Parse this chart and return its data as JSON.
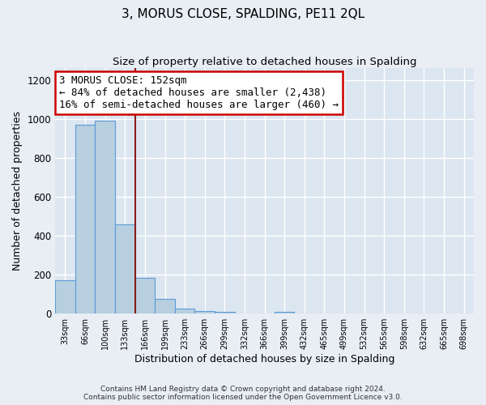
{
  "title": "3, MORUS CLOSE, SPALDING, PE11 2QL",
  "subtitle": "Size of property relative to detached houses in Spalding",
  "xlabel": "Distribution of detached houses by size in Spalding",
  "ylabel": "Number of detached properties",
  "footer_line1": "Contains HM Land Registry data © Crown copyright and database right 2024.",
  "footer_line2": "Contains public sector information licensed under the Open Government Licence v3.0.",
  "bar_labels": [
    "33sqm",
    "66sqm",
    "100sqm",
    "133sqm",
    "166sqm",
    "199sqm",
    "233sqm",
    "266sqm",
    "299sqm",
    "332sqm",
    "366sqm",
    "399sqm",
    "432sqm",
    "465sqm",
    "499sqm",
    "532sqm",
    "565sqm",
    "598sqm",
    "632sqm",
    "665sqm",
    "698sqm"
  ],
  "bar_values": [
    170,
    970,
    990,
    460,
    185,
    75,
    25,
    15,
    10,
    0,
    0,
    8,
    0,
    0,
    0,
    0,
    0,
    0,
    0,
    0,
    0
  ],
  "bar_color": "#b8cfe0",
  "bar_edge_color": "#5b9bd5",
  "ylim": [
    0,
    1260
  ],
  "yticks": [
    0,
    200,
    400,
    600,
    800,
    1000,
    1200
  ],
  "property_label": "3 MORUS CLOSE: 152sqm",
  "annotation_line1": "← 84% of detached houses are smaller (2,438)",
  "annotation_line2": "16% of semi-detached houses are larger (460) →",
  "vline_color": "#8b1a1a",
  "vline_x_bin": 3.5,
  "annotation_box_color": "#ffffff",
  "annotation_box_edge_color": "#cc0000",
  "background_color": "#e8eef4",
  "plot_background_color": "#dce6f0",
  "grid_color": "#ffffff",
  "title_fontsize": 11,
  "subtitle_fontsize": 9.5,
  "annotation_fontsize": 9
}
